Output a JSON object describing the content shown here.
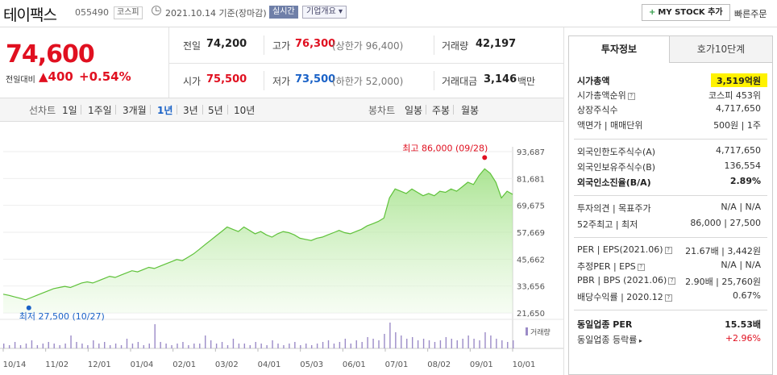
{
  "header": {
    "stock_name": "테이팩스",
    "stock_code": "055490",
    "market": "코스피",
    "date_text": "2021.10.14 기준(장마감)",
    "realtime": "실시간",
    "company_overview": "기업개요",
    "my_stock_button": "MY STOCK 추가",
    "quick_order": "빠른주문"
  },
  "price": {
    "current": "74,600",
    "change_label": "전일대비",
    "change_amount": "400",
    "change_pct": "+0.54%"
  },
  "summary": {
    "prev_close_label": "전일",
    "prev_close": "74,200",
    "high_label": "고가",
    "high": "76,300",
    "upper_limit": "(상한가 96,400)",
    "volume_label": "거래량",
    "volume": "42,197",
    "open_label": "시가",
    "open": "75,500",
    "low_label": "저가",
    "low": "73,500",
    "lower_limit": "(하한가 52,000)",
    "amount_label": "거래대금",
    "amount": "3,146",
    "amount_unit": "백만"
  },
  "tabs": {
    "line_chart": "선차트",
    "periods": [
      "1일",
      "1주일",
      "3개월",
      "1년",
      "3년",
      "5년",
      "10년"
    ],
    "active_period": "1년",
    "candle_chart": "봉차트",
    "candles": [
      "일봉",
      "주봉",
      "월봉"
    ]
  },
  "chart_data": {
    "type": "area",
    "y_ticks": [
      "93,687",
      "81,681",
      "69,675",
      "57,669",
      "45,662",
      "33,656",
      "21,650"
    ],
    "ylim": [
      21650,
      93687
    ],
    "x_ticks": [
      "10/14",
      "11/02",
      "12/01",
      "01/04",
      "02/01",
      "03/02",
      "04/01",
      "05/03",
      "06/01",
      "07/01",
      "08/02",
      "09/01",
      "10/01"
    ],
    "max_label": "최고 86,000 (09/28)",
    "min_label": "최저 27,500 (10/27)",
    "volume_legend": "거래량",
    "values": [
      30000,
      29500,
      28800,
      28200,
      27500,
      28500,
      29500,
      30500,
      31500,
      32500,
      33000,
      33500,
      33000,
      34000,
      35000,
      35500,
      35000,
      36000,
      37000,
      38000,
      37500,
      38500,
      39500,
      40500,
      40000,
      41000,
      42000,
      41500,
      42500,
      43500,
      44500,
      45500,
      45000,
      46500,
      48000,
      50000,
      52000,
      54000,
      56000,
      58000,
      60000,
      59000,
      58000,
      60000,
      58500,
      57000,
      58000,
      56500,
      55500,
      57000,
      58000,
      57500,
      56500,
      55000,
      54500,
      54000,
      55000,
      55500,
      56500,
      57500,
      58500,
      57500,
      57000,
      58000,
      59000,
      60500,
      61500,
      62500,
      64000,
      73000,
      77000,
      76000,
      75000,
      77000,
      75500,
      74000,
      75000,
      74000,
      76000,
      75500,
      77000,
      76000,
      78000,
      80000,
      79000,
      83000,
      86000,
      84000,
      80000,
      73000,
      76000,
      74600
    ],
    "volumes": [
      3,
      2,
      4,
      2,
      3,
      5,
      2,
      3,
      4,
      3,
      2,
      3,
      8,
      4,
      3,
      2,
      5,
      3,
      4,
      2,
      3,
      2,
      6,
      3,
      4,
      2,
      3,
      15,
      4,
      3,
      2,
      3,
      4,
      2,
      3,
      3,
      8,
      5,
      3,
      4,
      2,
      6,
      3,
      3,
      2,
      4,
      3,
      2,
      5,
      3,
      2,
      3,
      4,
      2,
      3,
      2,
      3,
      4,
      5,
      3,
      4,
      6,
      3,
      5,
      4,
      7,
      6,
      5,
      9,
      16,
      10,
      8,
      6,
      7,
      5,
      6,
      5,
      4,
      5,
      7,
      6,
      5,
      6,
      8,
      6,
      5,
      10,
      8,
      6,
      5,
      4,
      5
    ]
  },
  "panel": {
    "tab_invest": "투자정보",
    "tab_hoga": "호가10단계",
    "market_cap_label": "시가총액",
    "market_cap": "3,519억원",
    "market_cap_rank_label": "시가총액순위",
    "market_cap_rank": "코스피 453위",
    "shares_label": "상장주식수",
    "shares": "4,717,650",
    "par_label": "액면가 | 매매단위",
    "par": "500원 | 1주",
    "foreign_limit_label": "외국인한도주식수(A)",
    "foreign_limit": "4,717,650",
    "foreign_hold_label": "외국인보유주식수(B)",
    "foreign_hold": "136,554",
    "foreign_ratio_label": "외국인소진율(B/A)",
    "foreign_ratio": "2.89%",
    "opinion_label": "투자의견 | 목표주가",
    "opinion": "N/A | N/A",
    "week52_label": "52주최고 | 최저",
    "week52": "86,000 | 27,500",
    "per_label": "PER | EPS(2021.06)",
    "per": "21.67배 | 3,442원",
    "est_per_label": "추정PER | EPS",
    "est_per": "N/A | N/A",
    "pbr_label": "PBR | BPS (2021.06)",
    "pbr": "2.90배 | 25,760원",
    "dividend_label": "배당수익률 | 2020.12",
    "dividend": "0.67%",
    "sector_per_label": "동일업종 PER",
    "sector_per": "15.53배",
    "sector_rate_label": "동일업종 등락률",
    "sector_rate": "+2.96%"
  }
}
